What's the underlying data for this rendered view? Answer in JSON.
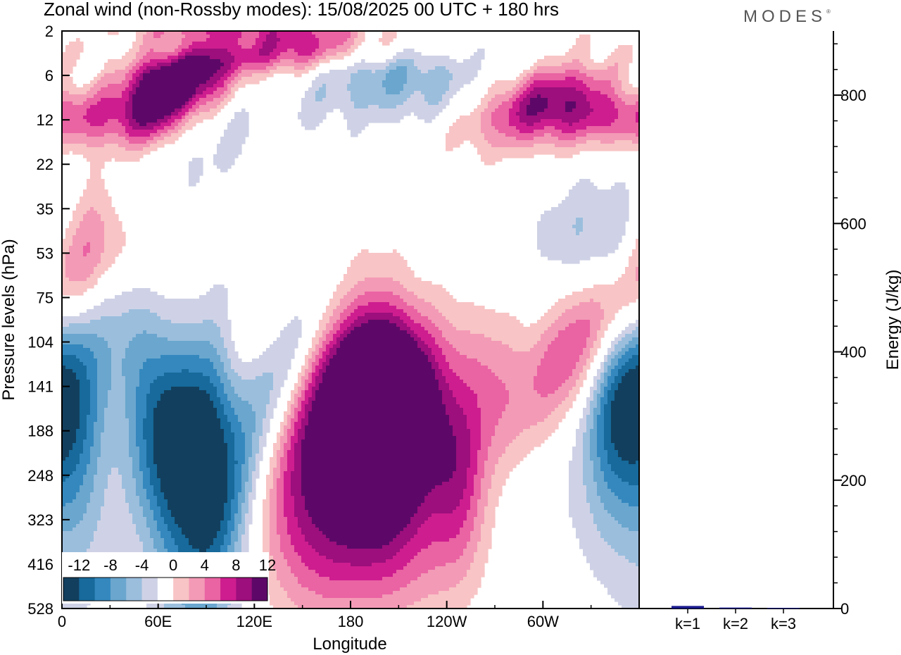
{
  "header": {
    "title": "Zonal wind (non-Rossby modes):  15/08/2025  00 UTC  + 180 hrs",
    "logo": "MODES"
  },
  "chart_data": [
    {
      "type": "heatmap",
      "name": "zonal-wind-contour",
      "title": "Zonal wind (non-Rossby modes)",
      "xlabel": "Longitude",
      "ylabel": "Pressure levels (hPa)",
      "x_ticks": [
        "0",
        "60E",
        "120E",
        "180",
        "120W",
        "60W"
      ],
      "x_range_deg": [
        0,
        360
      ],
      "y_levels": [
        "2",
        "6",
        "12",
        "22",
        "35",
        "53",
        "75",
        "104",
        "141",
        "188",
        "248",
        "323",
        "416",
        "528"
      ],
      "colorbar": {
        "labels": [
          "-12",
          "-8",
          "-4",
          "0",
          "4",
          "8",
          "12"
        ],
        "bounds": [
          -14,
          -12,
          -10,
          -8,
          -6,
          -4,
          -2,
          2,
          4,
          6,
          8,
          10,
          12,
          14
        ],
        "colors": [
          "#123f5e",
          "#176a9b",
          "#3488be",
          "#6aa6ce",
          "#9bbedd",
          "#cfd2e6",
          "#ffffff",
          "#f8c4c5",
          "#f39ab6",
          "#ea63a3",
          "#ce1d8f",
          "#9c0f7c",
          "#5d0868"
        ]
      },
      "features": [
        {
          "lon": 60,
          "level": 7.5,
          "value": 13,
          "lon_width": 14,
          "level_width": 0.55,
          "tilt": -0.12
        },
        {
          "lon": 88,
          "level": 5.6,
          "value": 11,
          "lon_width": 14,
          "level_width": 0.45,
          "tilt": -0.12
        },
        {
          "lon": 140,
          "level": 3.2,
          "value": 10,
          "lon_width": 35,
          "level_width": 0.5,
          "tilt": -0.06
        },
        {
          "lon": 110,
          "level": 1.4,
          "value": 9,
          "lon_width": 40,
          "level_width": 0.35,
          "tilt": -0.05
        },
        {
          "lon": 30,
          "level": 10.0,
          "value": 8,
          "lon_width": 40,
          "level_width": 0.45,
          "tilt": 0
        },
        {
          "lon": 310,
          "level": 7.8,
          "value": 6,
          "lon_width": 40,
          "level_width": 0.55,
          "tilt": -0.06
        },
        {
          "lon": 210,
          "level": 6.5,
          "value": -6,
          "lon_width": 45,
          "level_width": 0.45,
          "tilt": 0
        },
        {
          "lon": 55,
          "level": 15.5,
          "value": -5,
          "lon_width": 60,
          "level_width": 0.6,
          "tilt": -0.05
        },
        {
          "lon": 355,
          "level": 6.7,
          "value": -5,
          "lon_width": 25,
          "level_width": 0.35,
          "tilt": 0
        },
        {
          "lon": 12,
          "level": 43.0,
          "value": 6,
          "lon_width": 20,
          "level_width": 0.6,
          "tilt": -0.25
        },
        {
          "lon": 70,
          "level": 92.0,
          "value": 6,
          "lon_width": 45,
          "level_width": 0.4,
          "tilt": -0.15
        },
        {
          "lon": 355,
          "level": 101.0,
          "value": -6,
          "lon_width": 15,
          "level_width": 0.5,
          "tilt": 0
        },
        {
          "lon": 12,
          "level": 180.0,
          "value": -9,
          "lon_width": 15,
          "level_width": 0.55,
          "tilt": 0
        },
        {
          "lon": 62,
          "level": 172.0,
          "value": -14,
          "lon_width": 22,
          "level_width": 0.55,
          "tilt": 0.1
        },
        {
          "lon": 92,
          "level": 172.0,
          "value": -7,
          "lon_width": 14,
          "level_width": 0.6,
          "tilt": 0
        },
        {
          "lon": 90,
          "level": 300.0,
          "value": -5,
          "lon_width": 25,
          "level_width": 0.55,
          "tilt": 0
        },
        {
          "lon": 140,
          "level": 113.0,
          "value": -10,
          "lon_width": 30,
          "level_width": 0.4,
          "tilt": -0.22
        },
        {
          "lon": 100,
          "level": 60.0,
          "value": -5,
          "lon_width": 35,
          "level_width": 0.35,
          "tilt": -0.1
        },
        {
          "lon": 155,
          "level": 63.0,
          "value": 6,
          "lon_width": 30,
          "level_width": 0.3,
          "tilt": -0.1
        },
        {
          "lon": 158,
          "level": 195.0,
          "value": 9,
          "lon_width": 25,
          "level_width": 0.55,
          "tilt": 0
        },
        {
          "lon": 185,
          "level": 155.0,
          "value": 12,
          "lon_width": 18,
          "level_width": 0.45,
          "tilt": 0
        },
        {
          "lon": 202,
          "level": 165.0,
          "value": 13,
          "lon_width": 16,
          "level_width": 0.45,
          "tilt": 0
        },
        {
          "lon": 222,
          "level": 160.0,
          "value": 10,
          "lon_width": 18,
          "level_width": 0.45,
          "tilt": 0
        },
        {
          "lon": 190,
          "level": 280.0,
          "value": 5,
          "lon_width": 70,
          "level_width": 0.45,
          "tilt": 0
        },
        {
          "lon": 200,
          "level": 410.0,
          "value": 3,
          "lon_width": 45,
          "level_width": 0.25,
          "tilt": 0
        },
        {
          "lon": 248,
          "level": 260.0,
          "value": 6,
          "lon_width": 12,
          "level_width": 0.35,
          "tilt": 0
        },
        {
          "lon": 265,
          "level": 140.0,
          "value": 5,
          "lon_width": 18,
          "level_width": 0.4,
          "tilt": 0
        },
        {
          "lon": 330,
          "level": 98.0,
          "value": 10,
          "lon_width": 30,
          "level_width": 0.3,
          "tilt": -0.1
        },
        {
          "lon": 345,
          "level": 160.0,
          "value": -9,
          "lon_width": 15,
          "level_width": 0.45,
          "tilt": 0
        },
        {
          "lon": 280,
          "level": 300.0,
          "value": -3,
          "lon_width": 40,
          "level_width": 0.45,
          "tilt": 0
        },
        {
          "lon": 350,
          "level": 300.0,
          "value": -3,
          "lon_width": 20,
          "level_width": 0.5,
          "tilt": 0
        },
        {
          "lon": 340,
          "level": 12.0,
          "value": 5,
          "lon_width": 40,
          "level_width": 0.3,
          "tilt": 0
        },
        {
          "lon": 300,
          "level": 9.0,
          "value": 5,
          "lon_width": 30,
          "level_width": 0.3,
          "tilt": -0.08
        },
        {
          "lon": 330,
          "level": 45.0,
          "value": -3,
          "lon_width": 30,
          "level_width": 0.3,
          "tilt": 0
        },
        {
          "lon": 40,
          "level": 53.0,
          "value": 3,
          "lon_width": 25,
          "level_width": 0.3,
          "tilt": 0
        }
      ]
    },
    {
      "type": "bar",
      "name": "energy-bars",
      "categories": [
        "k=1",
        "k=2",
        "k=3"
      ],
      "values": [
        4,
        1.5,
        1
      ],
      "ylabel": "Energy (J/kg)",
      "ylim": [
        0,
        900
      ],
      "y_ticks": [
        "0",
        "200",
        "400",
        "600",
        "800"
      ],
      "bar_color": "#1a1a8c"
    }
  ]
}
